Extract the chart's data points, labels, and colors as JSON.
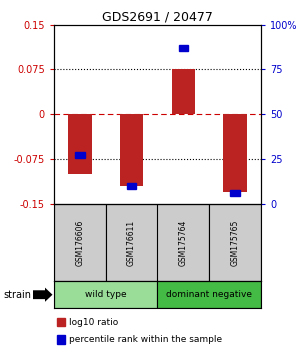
{
  "title": "GDS2691 / 20477",
  "samples": [
    "GSM176606",
    "GSM176611",
    "GSM175764",
    "GSM175765"
  ],
  "log10_ratio": [
    -0.1,
    -0.12,
    0.075,
    -0.13
  ],
  "percentile_rank": [
    27,
    10,
    87,
    6
  ],
  "ylim_left": [
    -0.15,
    0.15
  ],
  "ylim_right": [
    0,
    100
  ],
  "yticks_left": [
    -0.15,
    -0.075,
    0,
    0.075,
    0.15
  ],
  "ytick_labels_left": [
    "-0.15",
    "-0.075",
    "0",
    "0.075",
    "0.15"
  ],
  "yticks_right": [
    0,
    25,
    50,
    75,
    100
  ],
  "ytick_labels_right": [
    "0",
    "25",
    "50",
    "75",
    "100%"
  ],
  "hlines_dotted": [
    0.075,
    -0.075
  ],
  "hline_red_dashed": 0,
  "bar_color": "#bb2222",
  "dot_color": "#0000cc",
  "groups": [
    {
      "label": "wild type",
      "samples": [
        0,
        1
      ],
      "color": "#99dd99"
    },
    {
      "label": "dominant negative",
      "samples": [
        2,
        3
      ],
      "color": "#44bb44"
    }
  ],
  "strain_label": "strain",
  "legend_items": [
    {
      "color": "#bb2222",
      "label": "log10 ratio"
    },
    {
      "color": "#0000cc",
      "label": "percentile rank within the sample"
    }
  ],
  "bar_width": 0.45,
  "background_color": "#ffffff",
  "title_color": "#000000",
  "left_tick_color": "#cc0000",
  "right_tick_color": "#0000cc",
  "label_box_color": "#cccccc",
  "label_bg_color": "#cccccc"
}
